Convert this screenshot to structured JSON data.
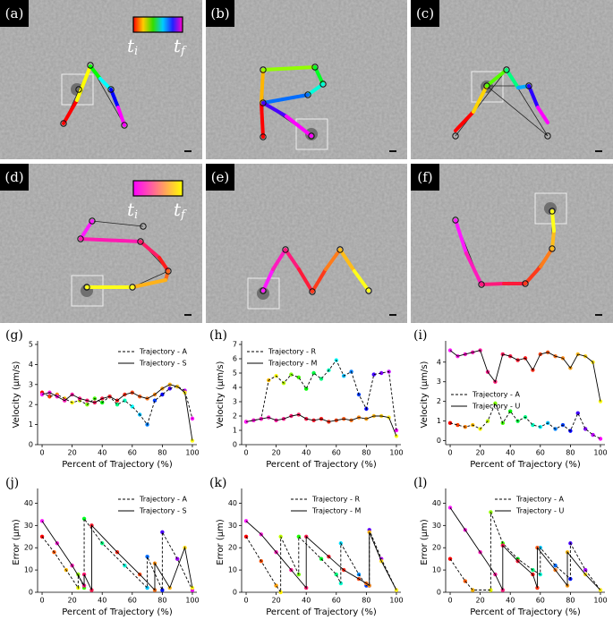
{
  "images": [
    {
      "label": "(a)",
      "colorbar": {
        "start": "t",
        "start_sub": "i",
        "end": "t",
        "end_sub": "f"
      }
    },
    {
      "label": "(b)"
    },
    {
      "label": "(c)"
    },
    {
      "label": "(d)",
      "colorbar": {
        "start": "t",
        "start_sub": "i",
        "end": "t",
        "end_sub": "f"
      }
    },
    {
      "label": "(e)"
    },
    {
      "label": "(f)"
    }
  ],
  "chart_data": [
    {
      "type": "line",
      "panel_label": "(g)",
      "xlabel": "Percent of Trajectory (%)",
      "ylabel": "Velocity (μm/s)",
      "xlim": [
        -3,
        103
      ],
      "xticks": [
        0,
        20,
        40,
        60,
        80,
        100
      ],
      "ylim": [
        0,
        5
      ],
      "yticks": [
        0,
        1,
        2,
        3,
        4,
        5
      ],
      "legend": "upper right",
      "series": [
        {
          "name": "Trajectory - A",
          "style": "dashed",
          "color": "#000000",
          "colormap": "rainbow",
          "x": [
            0,
            5,
            10,
            15,
            20,
            25,
            30,
            35,
            40,
            45,
            50,
            55,
            60,
            65,
            70,
            75,
            80,
            85,
            90,
            95,
            100
          ],
          "values": [
            2.6,
            2.4,
            2.5,
            2.3,
            2.1,
            2.2,
            2.0,
            2.3,
            2.1,
            2.4,
            2.0,
            2.2,
            1.9,
            1.5,
            1.0,
            2.2,
            2.5,
            2.8,
            2.9,
            2.7,
            1.3
          ]
        },
        {
          "name": "Trajectory - S",
          "style": "solid",
          "color": "#000000",
          "colormap": "spring",
          "x": [
            0,
            5,
            10,
            15,
            20,
            25,
            30,
            35,
            40,
            45,
            50,
            55,
            60,
            65,
            70,
            75,
            80,
            85,
            90,
            95,
            100
          ],
          "values": [
            2.5,
            2.6,
            2.4,
            2.2,
            2.5,
            2.3,
            2.2,
            2.1,
            2.3,
            2.4,
            2.2,
            2.5,
            2.6,
            2.4,
            2.3,
            2.5,
            2.8,
            3.0,
            2.9,
            2.6,
            0.2
          ]
        }
      ]
    },
    {
      "type": "line",
      "panel_label": "(h)",
      "xlabel": "Percent of Trajectory (%)",
      "ylabel": "Velocity (μm/s)",
      "xlim": [
        -3,
        103
      ],
      "xticks": [
        0,
        20,
        40,
        60,
        80,
        100
      ],
      "ylim": [
        0,
        7
      ],
      "yticks": [
        0,
        1,
        2,
        3,
        4,
        5,
        6,
        7
      ],
      "legend": "upper left",
      "series": [
        {
          "name": "Trajectory - R",
          "style": "dashed",
          "color": "#000000",
          "colormap": "rainbow",
          "x": [
            0,
            5,
            10,
            15,
            20,
            25,
            30,
            35,
            40,
            45,
            50,
            55,
            60,
            65,
            70,
            75,
            80,
            85,
            90,
            95,
            100
          ],
          "values": [
            1.6,
            1.7,
            1.8,
            4.5,
            4.8,
            4.3,
            4.9,
            4.7,
            3.9,
            5.0,
            4.6,
            5.2,
            5.9,
            4.8,
            5.1,
            3.5,
            2.5,
            4.9,
            5.0,
            5.1,
            1.0
          ]
        },
        {
          "name": "Trajectory - M",
          "style": "solid",
          "color": "#000000",
          "colormap": "spring",
          "x": [
            0,
            5,
            10,
            15,
            20,
            25,
            30,
            35,
            40,
            45,
            50,
            55,
            60,
            65,
            70,
            75,
            80,
            85,
            90,
            95,
            100
          ],
          "values": [
            1.6,
            1.7,
            1.8,
            1.9,
            1.7,
            1.8,
            2.0,
            2.1,
            1.8,
            1.7,
            1.8,
            1.6,
            1.7,
            1.8,
            1.7,
            1.9,
            1.8,
            2.0,
            2.0,
            1.9,
            0.6
          ]
        }
      ]
    },
    {
      "type": "line",
      "panel_label": "(i)",
      "xlabel": "Percent of Trajectory (%)",
      "ylabel": "Velocity (μm/s)",
      "xlim": [
        -3,
        103
      ],
      "xticks": [
        0,
        20,
        40,
        60,
        80,
        100
      ],
      "ylim": [
        -0.2,
        4.9
      ],
      "yticks": [
        0,
        1,
        2,
        3,
        4
      ],
      "legend": "center left",
      "series": [
        {
          "name": "Trajectory - A",
          "style": "dashed",
          "color": "#000000",
          "colormap": "rainbow",
          "x": [
            0,
            5,
            10,
            15,
            20,
            25,
            30,
            35,
            40,
            45,
            50,
            55,
            60,
            65,
            70,
            75,
            80,
            85,
            90,
            95,
            100
          ],
          "values": [
            0.9,
            0.8,
            0.7,
            0.8,
            0.6,
            1.0,
            1.9,
            0.9,
            1.5,
            1.0,
            1.2,
            0.8,
            0.7,
            0.9,
            0.6,
            0.8,
            0.5,
            1.4,
            0.6,
            0.3,
            0.1
          ]
        },
        {
          "name": "Trajectory - U",
          "style": "solid",
          "color": "#000000",
          "colormap": "spring",
          "x": [
            0,
            5,
            10,
            15,
            20,
            25,
            30,
            35,
            40,
            45,
            50,
            55,
            60,
            65,
            70,
            75,
            80,
            85,
            90,
            95,
            100
          ],
          "values": [
            4.6,
            4.3,
            4.4,
            4.5,
            4.6,
            3.5,
            3.0,
            4.4,
            4.3,
            4.1,
            4.2,
            3.6,
            4.4,
            4.5,
            4.3,
            4.2,
            3.7,
            4.4,
            4.3,
            4.0,
            2.0
          ]
        }
      ]
    },
    {
      "type": "line",
      "panel_label": "(j)",
      "xlabel": "Percent of Trajectory (%)",
      "ylabel": "Error (μm)",
      "xlim": [
        -3,
        103
      ],
      "xticks": [
        0,
        20,
        40,
        60,
        80,
        100
      ],
      "ylim": [
        0,
        45
      ],
      "yticks": [
        0,
        10,
        20,
        30,
        40
      ],
      "legend": "upper right",
      "series": [
        {
          "name": "Trajectory - A",
          "style": "dashed",
          "color": "#000000",
          "colormap": "rainbow",
          "x": [
            0,
            8,
            16,
            24,
            24,
            28,
            28,
            40,
            55,
            70,
            70,
            80,
            80,
            90,
            100
          ],
          "values": [
            25,
            18,
            10,
            2,
            8,
            2,
            33,
            22,
            12,
            2,
            16,
            1,
            27,
            15,
            1
          ]
        },
        {
          "name": "Trajectory - S",
          "style": "solid",
          "color": "#000000",
          "colormap": "spring",
          "x": [
            0,
            10,
            20,
            28,
            28,
            33,
            33,
            50,
            65,
            75,
            75,
            85,
            95,
            100
          ],
          "values": [
            32,
            22,
            12,
            3,
            8,
            1,
            30,
            18,
            8,
            1,
            13,
            2,
            20,
            2
          ]
        }
      ]
    },
    {
      "type": "line",
      "panel_label": "(k)",
      "xlabel": "Percent of Trajectory (%)",
      "ylabel": "Error (μm)",
      "xlim": [
        -3,
        103
      ],
      "xticks": [
        0,
        20,
        40,
        60,
        80,
        100
      ],
      "ylim": [
        0,
        45
      ],
      "yticks": [
        0,
        10,
        20,
        30,
        40
      ],
      "legend": "upper center",
      "series": [
        {
          "name": "Trajectory - R",
          "style": "dashed",
          "color": "#000000",
          "colormap": "rainbow",
          "x": [
            0,
            10,
            20,
            23,
            23,
            35,
            35,
            50,
            60,
            63,
            63,
            75,
            80,
            82,
            82,
            90,
            100
          ],
          "values": [
            25,
            14,
            3,
            0,
            25,
            8,
            25,
            15,
            8,
            4,
            22,
            8,
            3,
            3,
            28,
            15,
            1
          ]
        },
        {
          "name": "Trajectory - M",
          "style": "solid",
          "color": "#000000",
          "colormap": "spring",
          "x": [
            0,
            10,
            20,
            30,
            40,
            40,
            55,
            65,
            75,
            80,
            82,
            82,
            90,
            100
          ],
          "values": [
            32,
            26,
            18,
            10,
            2,
            25,
            16,
            10,
            6,
            4,
            3,
            27,
            14,
            1
          ]
        }
      ]
    },
    {
      "type": "line",
      "panel_label": "(l)",
      "xlabel": "Percent of Trajectory (%)",
      "ylabel": "Error (μm)",
      "xlim": [
        -3,
        103
      ],
      "xticks": [
        0,
        20,
        40,
        60,
        80,
        100
      ],
      "ylim": [
        0,
        45
      ],
      "yticks": [
        0,
        10,
        20,
        30,
        40
      ],
      "legend": "upper center",
      "series": [
        {
          "name": "Trajectory - A",
          "style": "dashed",
          "color": "#000000",
          "colormap": "rainbow",
          "x": [
            0,
            10,
            15,
            27,
            27,
            35,
            45,
            55,
            60,
            60,
            70,
            80,
            80,
            90,
            100
          ],
          "values": [
            15,
            5,
            1,
            1,
            36,
            22,
            15,
            10,
            8,
            20,
            12,
            6,
            22,
            10,
            1
          ]
        },
        {
          "name": "Trajectory - U",
          "style": "solid",
          "color": "#000000",
          "colormap": "spring",
          "x": [
            0,
            10,
            20,
            30,
            35,
            35,
            45,
            55,
            58,
            58,
            70,
            78,
            78,
            90,
            100
          ],
          "values": [
            38,
            28,
            18,
            8,
            1,
            21,
            14,
            8,
            2,
            20,
            10,
            3,
            18,
            8,
            1
          ]
        }
      ]
    }
  ]
}
